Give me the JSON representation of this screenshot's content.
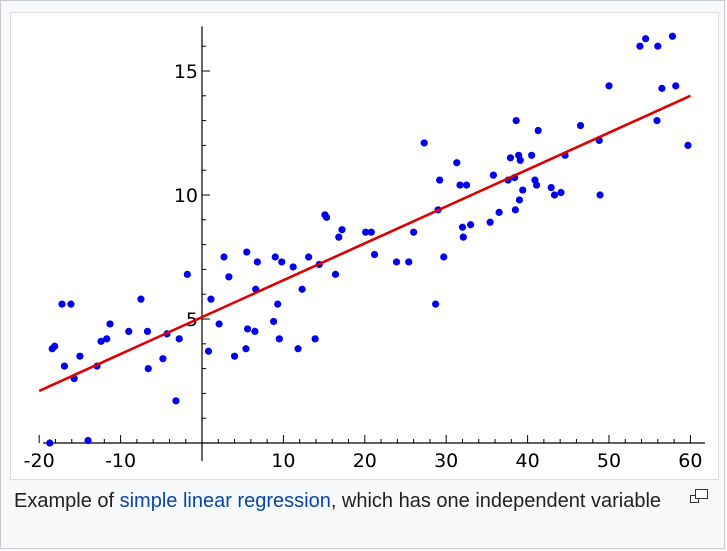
{
  "caption": {
    "prefix": "Example of ",
    "link_text": "simple linear regression",
    "suffix": ", which has one independent variable"
  },
  "icons": {
    "enlarge": "magnify-clip-icon"
  },
  "colors": {
    "points": "#0000ee",
    "fit_line": "#dd0000",
    "link": "#0645ad"
  },
  "chart_data": {
    "type": "scatter",
    "title": "",
    "xlabel": "",
    "ylabel": "",
    "xlim": [
      -20.5,
      62
    ],
    "ylim": [
      0,
      16.8
    ],
    "x_ticks": [
      -20,
      -10,
      10,
      20,
      30,
      40,
      50,
      60
    ],
    "y_ticks": [
      5,
      10,
      15
    ],
    "grid": false,
    "series": [
      {
        "values": [
          [
            -18.7,
            0
          ],
          [
            -18.4,
            3.8
          ],
          [
            -18.1,
            3.9
          ],
          [
            -17.2,
            5.6
          ],
          [
            -16.9,
            3.1
          ],
          [
            -16.1,
            5.6
          ],
          [
            -15.7,
            2.6
          ],
          [
            -15,
            3.5
          ],
          [
            -14,
            0.1
          ],
          [
            -12.9,
            3.1
          ],
          [
            -12.4,
            4.1
          ],
          [
            -11.7,
            4.2
          ],
          [
            -11.3,
            4.8
          ],
          [
            -9,
            4.5
          ],
          [
            -7.5,
            5.8
          ],
          [
            -6.7,
            4.5
          ],
          [
            -6.6,
            3
          ],
          [
            -4.8,
            3.4
          ],
          [
            -4.3,
            4.4
          ],
          [
            -3.2,
            1.7
          ],
          [
            -2.8,
            4.2
          ],
          [
            -1.8,
            6.8
          ],
          [
            0.8,
            3.7
          ],
          [
            1.1,
            5.8
          ],
          [
            2.1,
            4.8
          ],
          [
            2.7,
            7.5
          ],
          [
            3.3,
            6.7
          ],
          [
            4,
            3.5
          ],
          [
            5.4,
            3.8
          ],
          [
            5.5,
            7.7
          ],
          [
            5.6,
            4.6
          ],
          [
            6.5,
            4.5
          ],
          [
            6.6,
            6.2
          ],
          [
            6.8,
            7.3
          ],
          [
            8.8,
            4.9
          ],
          [
            9,
            7.5
          ],
          [
            9.3,
            5.6
          ],
          [
            9.5,
            4.2
          ],
          [
            9.8,
            7.3
          ],
          [
            11.2,
            7.1
          ],
          [
            11.8,
            3.8
          ],
          [
            12.3,
            6.2
          ],
          [
            13.1,
            7.5
          ],
          [
            13.9,
            4.2
          ],
          [
            14.4,
            7.2
          ],
          [
            15.1,
            9.2
          ],
          [
            15.3,
            9.1
          ],
          [
            16.4,
            6.8
          ],
          [
            16.8,
            8.3
          ],
          [
            17.2,
            8.6
          ],
          [
            20.1,
            8.5
          ],
          [
            20.8,
            8.5
          ],
          [
            21.2,
            7.6
          ],
          [
            23.9,
            7.3
          ],
          [
            25.4,
            7.3
          ],
          [
            26,
            8.5
          ],
          [
            27.3,
            12.1
          ],
          [
            28.7,
            5.6
          ],
          [
            29,
            9.4
          ],
          [
            29.2,
            10.6
          ],
          [
            29.7,
            7.5
          ],
          [
            31.3,
            11.3
          ],
          [
            31.7,
            10.4
          ],
          [
            32,
            8.7
          ],
          [
            32.1,
            8.3
          ],
          [
            32.5,
            10.4
          ],
          [
            33,
            8.8
          ],
          [
            35.4,
            8.9
          ],
          [
            35.8,
            10.8
          ],
          [
            36.5,
            9.3
          ],
          [
            37.6,
            10.6
          ],
          [
            37.9,
            11.5
          ],
          [
            38.4,
            10.7
          ],
          [
            38.5,
            9.4
          ],
          [
            38.6,
            13
          ],
          [
            38.9,
            11.6
          ],
          [
            39,
            9.8
          ],
          [
            39.1,
            11.4
          ],
          [
            39.4,
            10.2
          ],
          [
            40.5,
            11.6
          ],
          [
            40.9,
            10.6
          ],
          [
            41.1,
            10.4
          ],
          [
            41.3,
            12.6
          ],
          [
            42.9,
            10.3
          ],
          [
            43.3,
            10
          ],
          [
            44.1,
            10.1
          ],
          [
            44.6,
            11.6
          ],
          [
            46.5,
            12.8
          ],
          [
            48.8,
            12.2
          ],
          [
            48.9,
            10
          ],
          [
            50,
            14.4
          ],
          [
            53.8,
            16
          ],
          [
            54.5,
            16.3
          ],
          [
            55.9,
            13
          ],
          [
            56,
            16
          ],
          [
            56.5,
            14.3
          ],
          [
            57.8,
            16.4
          ],
          [
            58.2,
            14.4
          ],
          [
            59.7,
            12
          ]
        ]
      }
    ],
    "fit_line": {
      "x": [
        -20,
        60
      ],
      "y": [
        2.1,
        14
      ]
    }
  }
}
